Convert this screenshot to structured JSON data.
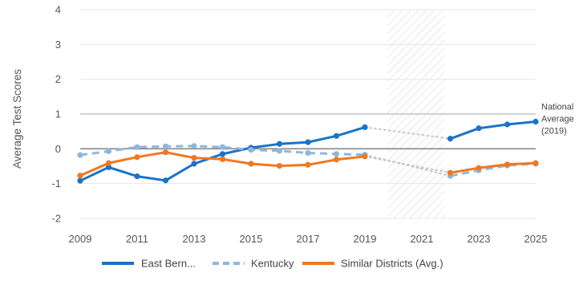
{
  "chart_data": {
    "type": "line",
    "ylabel": "Average Test Scores",
    "xlabel": "",
    "xlim": [
      2009,
      2025
    ],
    "ylim": [
      -2,
      4
    ],
    "x_ticks": [
      "2009",
      "2011",
      "2013",
      "2015",
      "2017",
      "2019",
      "2021",
      "2023",
      "2025"
    ],
    "y_ticks": [
      "-2",
      "-1",
      "0",
      "1",
      "2",
      "3",
      "4"
    ],
    "grid": true,
    "shaded_period": [
      2019.8,
      2021.8
    ],
    "reference_lines": [
      {
        "y": 1,
        "color": "#d3d3d3",
        "annotation": [
          "National",
          "Average",
          "(2019)"
        ]
      },
      {
        "y": 0,
        "color": "#888888"
      }
    ],
    "series": [
      {
        "name": "East Bern...",
        "color": "#1a73c9",
        "style": "solid",
        "segments": [
          [
            [
              2009,
              -0.92
            ],
            [
              2010,
              -0.53
            ],
            [
              2011,
              -0.79
            ],
            [
              2012,
              -0.91
            ],
            [
              2013,
              -0.43
            ],
            [
              2014,
              -0.15
            ],
            [
              2015,
              0.03
            ],
            [
              2016,
              0.14
            ],
            [
              2017,
              0.19
            ],
            [
              2018,
              0.37
            ],
            [
              2019,
              0.62
            ]
          ],
          [
            [
              2022,
              0.29
            ],
            [
              2023,
              0.59
            ],
            [
              2024,
              0.7
            ],
            [
              2025,
              0.78
            ]
          ]
        ]
      },
      {
        "name": "Kentucky",
        "color": "#8fb6df",
        "style": "dashed",
        "segments": [
          [
            [
              2009,
              -0.18
            ],
            [
              2010,
              -0.07
            ],
            [
              2011,
              0.05
            ],
            [
              2012,
              0.07
            ],
            [
              2013,
              0.08
            ],
            [
              2014,
              0.05
            ],
            [
              2015,
              -0.03
            ],
            [
              2016,
              -0.06
            ],
            [
              2017,
              -0.12
            ],
            [
              2018,
              -0.15
            ],
            [
              2019,
              -0.17
            ]
          ],
          [
            [
              2022,
              -0.78
            ],
            [
              2023,
              -0.62
            ],
            [
              2024,
              -0.48
            ],
            [
              2025,
              -0.43
            ]
          ]
        ]
      },
      {
        "name": "Similar Districts (Avg.)",
        "color": "#f07820",
        "style": "solid",
        "segments": [
          [
            [
              2009,
              -0.77
            ],
            [
              2010,
              -0.41
            ],
            [
              2011,
              -0.24
            ],
            [
              2012,
              -0.1
            ],
            [
              2013,
              -0.26
            ],
            [
              2014,
              -0.3
            ],
            [
              2015,
              -0.43
            ],
            [
              2016,
              -0.49
            ],
            [
              2017,
              -0.46
            ],
            [
              2018,
              -0.31
            ],
            [
              2019,
              -0.22
            ]
          ],
          [
            [
              2022,
              -0.69
            ],
            [
              2023,
              -0.55
            ],
            [
              2024,
              -0.45
            ],
            [
              2025,
              -0.41
            ]
          ]
        ]
      }
    ],
    "legend": {
      "position": "bottom-center"
    }
  }
}
